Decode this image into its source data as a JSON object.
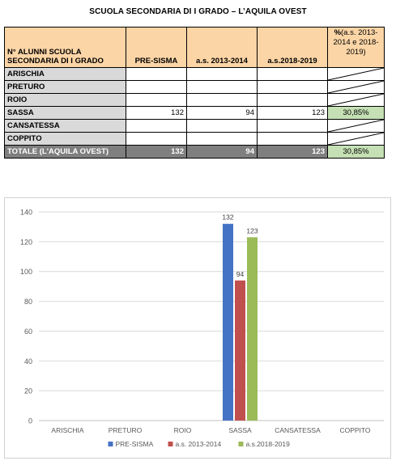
{
  "title": "SCUOLA SECONDARIA DI I GRADO – L’AQUILA OVEST",
  "table": {
    "header": {
      "col0": "N° ALUNNI SCUOLA SECONDARIA DI I GRADO",
      "col1": "PRE-SISMA",
      "col2": "a.s. 2013-2014",
      "col3": "a.s.2018-2019",
      "col4_prefix": "%",
      "col4_rest": "(a.s. 2013-2014 e 2018-2019)"
    },
    "rows": [
      {
        "name": "ARISCHIA",
        "pre": "",
        "a1314": "",
        "a1819": "",
        "pct": ""
      },
      {
        "name": "PRETURO",
        "pre": "",
        "a1314": "",
        "a1819": "",
        "pct": ""
      },
      {
        "name": "ROIO",
        "pre": "",
        "a1314": "",
        "a1819": "",
        "pct": ""
      },
      {
        "name": "SASSA",
        "pre": "132",
        "a1314": "94",
        "a1819": "123",
        "pct": "30,85%"
      },
      {
        "name": "CANSATESSA",
        "pre": "",
        "a1314": "",
        "a1819": "",
        "pct": ""
      },
      {
        "name": "COPPITO",
        "pre": "",
        "a1314": "",
        "a1819": "",
        "pct": ""
      }
    ],
    "total": {
      "name": "TOTALE (L'AQUILA OVEST)",
      "pre": "132",
      "a1314": "94",
      "a1819": "123",
      "pct": "30,85%"
    }
  },
  "colors": {
    "pre": "#4472c4",
    "a1314": "#c0504d",
    "a1819": "#9bbb59",
    "grid": "#d9d9d9",
    "axis_text": "#595959"
  },
  "chart_data": {
    "type": "bar",
    "categories": [
      "ARISCHIA",
      "PRETURO",
      "ROIO",
      "SASSA",
      "CANSATESSA",
      "COPPITO"
    ],
    "series": [
      {
        "name": "PRE-SISMA",
        "values": [
          0,
          0,
          0,
          132,
          0,
          0
        ]
      },
      {
        "name": "a.s. 2013-2014",
        "values": [
          0,
          0,
          0,
          94,
          0,
          0
        ]
      },
      {
        "name": "a.s.2018-2019",
        "values": [
          0,
          0,
          0,
          123,
          0,
          0
        ]
      }
    ],
    "yticks": [
      "0",
      "20",
      "40",
      "60",
      "80",
      "100",
      "120",
      "140"
    ],
    "ylim": [
      0,
      140
    ],
    "grid": true,
    "legend": "bottom",
    "title": "",
    "xlabel": "",
    "ylabel": ""
  }
}
